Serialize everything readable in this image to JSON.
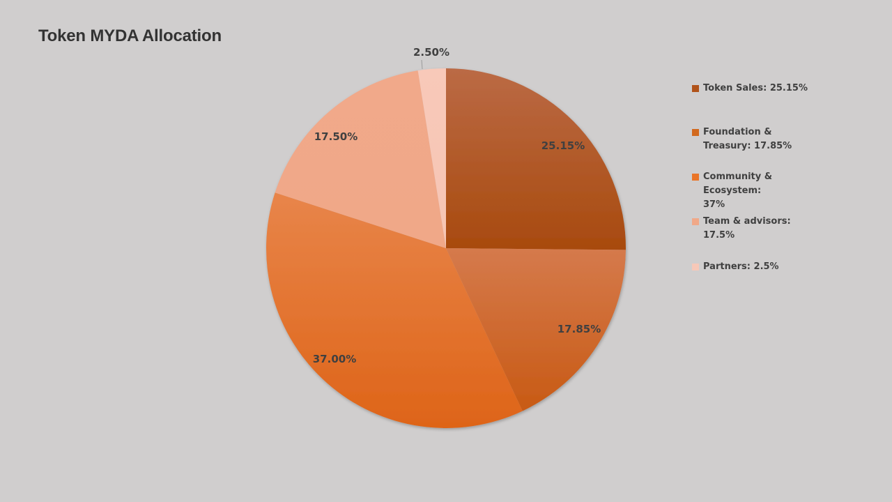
{
  "title": "Token MYDA Allocation",
  "chart_data": {
    "type": "pie",
    "title": "Token MYDA Allocation",
    "start_angle": "12 o'clock, clockwise",
    "categories": [
      "Token Sales",
      "Foundation & Treasury",
      "Community & Ecosystem",
      "Team & advisors",
      "Partners"
    ],
    "values": [
      25.15,
      17.85,
      37.0,
      17.5,
      2.5
    ],
    "data_labels": [
      "25.15%",
      "17.85%",
      "37.00%",
      "17.50%",
      "2.50%"
    ],
    "colors": [
      "#b0531a",
      "#d2691e",
      "#ea7528",
      "#f0a888",
      "#f7c8b8"
    ],
    "legend_position": "right",
    "legend_entries": [
      "Token Sales: 25.15%",
      "Foundation & Treasury: 17.85%",
      "Community & Ecosystem: 37%",
      "Team & advisors: 17.5%",
      "Partners: 2.5%"
    ]
  },
  "legend": {
    "items": [
      {
        "label": "Token Sales: 25.15%",
        "color": "#b0531a"
      },
      {
        "label": "Foundation & Treasury: 17.85%",
        "color": "#d2691e"
      },
      {
        "label": "Community & Ecosystem: 37%",
        "color": "#ea7528"
      },
      {
        "label": "Team & advisors: 17.5%",
        "color": "#f0a888"
      },
      {
        "label": "Partners: 2.5%",
        "color": "#f7c8b8"
      }
    ]
  }
}
